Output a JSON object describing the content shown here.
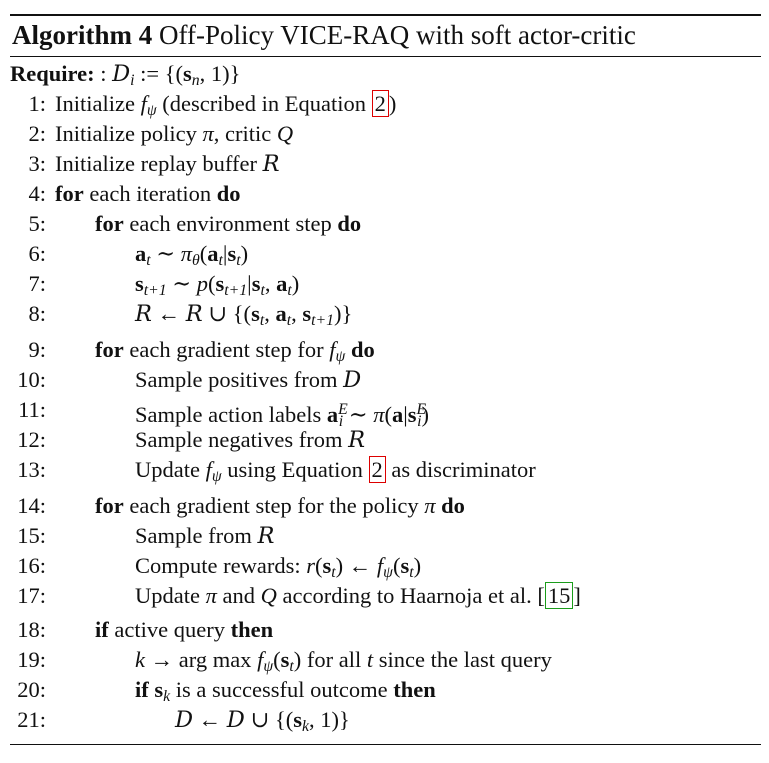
{
  "algorithm": {
    "label": "Algorithm 4",
    "title": "Off-Policy VICE-RAQ with soft actor-critic"
  },
  "require": {
    "keyword": "Require:"
  },
  "lines": {
    "n1": "1:",
    "n2": "2:",
    "n3": "3:",
    "n4": "4:",
    "n5": "5:",
    "n6": "6:",
    "n7": "7:",
    "n8": "8:",
    "n9": "9:",
    "n10": "10:",
    "n11": "11:",
    "n12": "12:",
    "n13": "13:",
    "n14": "14:",
    "n15": "15:",
    "n16": "16:",
    "n17": "17:",
    "n18": "18:",
    "n19": "19:",
    "n20": "20:",
    "n21": "21:"
  },
  "text": {
    "initialize": "Initialize",
    "described_in_eq": "(described in Equation",
    "eq_ref": "2",
    "init_policy": "Initialize policy",
    "critic": ", critic",
    "init_buffer": "Initialize replay buffer",
    "kw_for": "for",
    "kw_do": "do",
    "kw_if": "if",
    "kw_then": "then",
    "each_iteration": "each iteration",
    "each_env_step": "each environment step",
    "each_grad_step_for": "each gradient step for",
    "sample_positives": "Sample positives from",
    "sample_action_labels": "Sample action labels",
    "sample_negatives": "Sample negatives from",
    "update": "Update",
    "using_equation": "using Equation",
    "as_discriminator": "as discriminator",
    "each_grad_step_policy": "each gradient step for the policy",
    "sample_from": "Sample from",
    "compute_rewards": "Compute rewards:",
    "and": "and",
    "according_to": "according to Haarnoja et al.",
    "cite_ref": "15",
    "active_query": "active query",
    "for_all": "for all",
    "since_last_query": "since the last query",
    "is_successful": "is a successful outcome"
  }
}
